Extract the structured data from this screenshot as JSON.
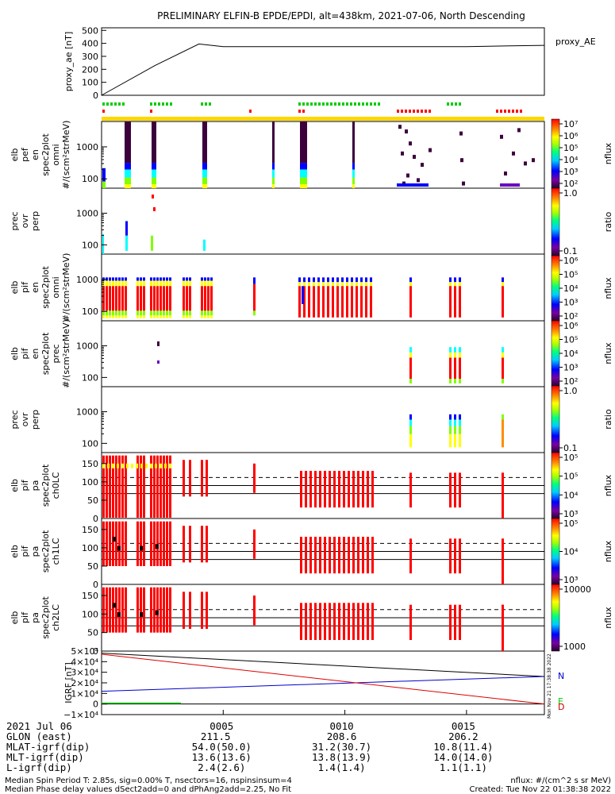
{
  "title": "PRELIMINARY ELFIN-B EPDE/EPDI, alt=438km, 2021-07-06, North Descending",
  "colors": {
    "fill_red": "#ff0000",
    "fill_orange": "#ff8c00",
    "fill_yellow": "#ffff00",
    "fill_green": "#7fff00",
    "fill_cyan": "#00ffff",
    "fill_blue": "#0000ff",
    "fill_purple": "#3c003c",
    "bar_yellow": "#ffd700",
    "igrf_n": "#000000",
    "igrf_e": "#0000cc",
    "igrf_d": "#dd0000",
    "flag_green": "#00cc00"
  },
  "chart_data": [
    {
      "type": "line",
      "panel": "proxy_ae",
      "ylabel": "proxy_ae [nT]",
      "legend": "proxy_AE",
      "yticks": [
        "500",
        "400",
        "300",
        "200",
        "100",
        "0"
      ],
      "ylim": [
        0,
        520
      ],
      "x_minutes": [
        0,
        2.2,
        4.0,
        5.0,
        10.0,
        15.0,
        18.2
      ],
      "values": [
        0,
        230,
        395,
        375,
        375,
        375,
        385
      ]
    },
    {
      "type": "heatmap",
      "panel": "elb pef en spec2plot omni",
      "ylabel": [
        "elb",
        "pef",
        "en",
        "spec2plot",
        "omni",
        "#/(scm²strMeV)"
      ],
      "yticks": [
        "1000",
        "100"
      ],
      "scale": "log",
      "colorbar": {
        "label": "nflux",
        "ticks": [
          "10⁷",
          "10⁶",
          "10⁵",
          "10⁴",
          "10³",
          "10²"
        ]
      }
    },
    {
      "type": "heatmap",
      "panel": "prec ovr perp (electrons)",
      "ylabel": [
        "prec",
        "ovr",
        "perp"
      ],
      "yticks": [
        "1000",
        "100"
      ],
      "scale": "log",
      "colorbar": {
        "label": "ratio",
        "ticks": [
          "1.0",
          "0.1"
        ]
      }
    },
    {
      "type": "heatmap",
      "panel": "elb pif en spec2plot omni",
      "ylabel": [
        "elb",
        "pif",
        "en",
        "spec2plot",
        "omni",
        "#/(scm²strMeV)"
      ],
      "yticks": [
        "1000",
        "100"
      ],
      "scale": "log",
      "colorbar": {
        "label": "nflux",
        "ticks": [
          "10⁶",
          "10⁵",
          "10⁴",
          "10³",
          "10²"
        ]
      }
    },
    {
      "type": "heatmap",
      "panel": "elb pif en spec2plot prec",
      "ylabel": [
        "elb",
        "pif",
        "en",
        "spec2plot",
        "prec",
        "#/(scm²strMeV)"
      ],
      "yticks": [
        "1000",
        "100"
      ],
      "scale": "log",
      "colorbar": {
        "label": "nflux",
        "ticks": [
          "10⁶",
          "10⁵",
          "10⁴",
          "10³",
          "10²"
        ]
      }
    },
    {
      "type": "heatmap",
      "panel": "prec ovr perp (ions)",
      "ylabel": [
        "prec",
        "ovr",
        "perp"
      ],
      "yticks": [
        "1000",
        "100"
      ],
      "scale": "log",
      "colorbar": {
        "label": "ratio",
        "ticks": [
          "1.0",
          "0.1"
        ]
      }
    },
    {
      "type": "heatmap",
      "panel": "elb pif pa ch0LC",
      "ylabel": [
        "elb",
        "pif",
        "pa",
        "spec2plot",
        "ch0LC"
      ],
      "yticks": [
        "150",
        "100",
        "50",
        "0"
      ],
      "ylim": [
        0,
        180
      ],
      "colorbar": {
        "label": "nflux",
        "ticks": [
          "10⁵",
          "10⁵",
          "10⁴",
          "10³"
        ]
      }
    },
    {
      "type": "heatmap",
      "panel": "elb pif pa spec2plot ch1LC",
      "ylabel": [
        "elb",
        "pif",
        "pa",
        "spec2plot",
        "ch1LC"
      ],
      "yticks": [
        "150",
        "100",
        "50",
        "0"
      ],
      "ylim": [
        0,
        180
      ],
      "colorbar": {
        "label": "nflux",
        "ticks": [
          "10⁵",
          "10⁴",
          "10³"
        ]
      }
    },
    {
      "type": "heatmap",
      "panel": "elb pif pa spec2plot ch2LC",
      "ylabel": [
        "elb",
        "pif",
        "pa",
        "spec2plot",
        "ch2LC"
      ],
      "yticks": [
        "150",
        "100",
        "50",
        "0"
      ],
      "ylim": [
        0,
        180
      ],
      "colorbar": {
        "label": "nflux",
        "ticks": [
          "10000",
          "1000"
        ]
      }
    },
    {
      "type": "line",
      "panel": "IGRF",
      "ylabel": "IGRF [nT]",
      "yticks": [
        "5×10⁴",
        "4×10⁴",
        "3×10⁴",
        "2×10⁴",
        "1×10⁴",
        "0",
        "−1×10⁴"
      ],
      "ylim": [
        -10000,
        50000
      ],
      "x_minutes": [
        0,
        18.2
      ],
      "series": [
        {
          "name": "N",
          "values": [
            48000,
            26000
          ]
        },
        {
          "name": "E",
          "values": [
            12000,
            26000
          ]
        },
        {
          "name": "D",
          "values": [
            47000,
            0
          ]
        }
      ]
    }
  ],
  "footer": {
    "rows": [
      {
        "label": "2021 Jul 06",
        "v1": "0005",
        "v2": "0010",
        "v3": "0015"
      },
      {
        "label": "GLON (east)",
        "v0": "211.5",
        "v2": "208.6",
        "v3": "206.2"
      },
      {
        "label": "MLAT-igrf(dip)",
        "v1": "54.0(50.0)",
        "v2": "31.2(30.7)",
        "v3": "10.8(11.4)"
      },
      {
        "label": "MLT-igrf(dip)",
        "v1": "13.6(13.6)",
        "v2": "13.8(13.9)",
        "v3": "14.0(14.0)"
      },
      {
        "label": "L-igrf(dip)",
        "v1": "2.4(2.6)",
        "v2": "1.4(1.4)",
        "v3": "1.1(1.1)"
      }
    ],
    "note1": "Median Spin Period T: 2.85s, sig=0.00% T, nsectors=16, nspinsinsum=4",
    "note2": "Median Phase delay values dSect2add=0 and dPhAng2add=2.25, No Fit",
    "nflux_note": "nflux: #/(cm^2 s sr MeV)",
    "created": "Created: Tue Nov 22 01:38:38 2022",
    "side_stamp": "Mon Nov 21 17:38:38 2022"
  }
}
